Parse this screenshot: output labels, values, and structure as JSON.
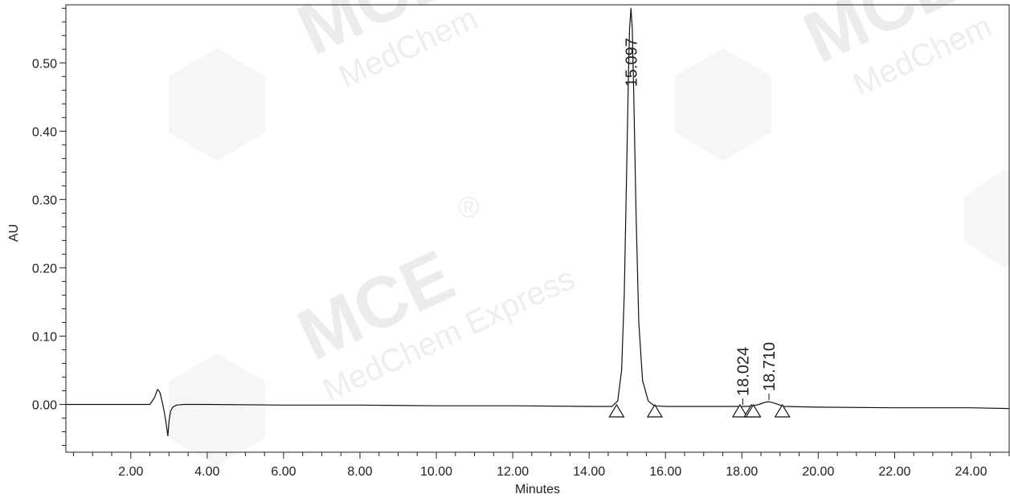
{
  "colors": {
    "trace": "#111111",
    "axis": "#222222",
    "watermark": "#ececec"
  },
  "watermark": {
    "brand": "MCE",
    "line1": "MedChem",
    "line2": "MedChem Express",
    "registered": "®"
  },
  "chart_data": {
    "type": "line",
    "xlabel": "Minutes",
    "ylabel": "AU",
    "xlim": [
      0.3,
      25.0
    ],
    "ylim": [
      -0.07,
      0.585
    ],
    "grid": false,
    "legend": "none",
    "x_ticks": [
      2.0,
      4.0,
      6.0,
      8.0,
      10.0,
      12.0,
      14.0,
      16.0,
      18.0,
      20.0,
      22.0,
      24.0
    ],
    "x_tick_labels": [
      "2.00",
      "4.00",
      "6.00",
      "8.00",
      "10.00",
      "12.00",
      "14.00",
      "16.00",
      "18.00",
      "20.00",
      "22.00",
      "24.00"
    ],
    "y_ticks": [
      0.0,
      0.1,
      0.2,
      0.3,
      0.4,
      0.5
    ],
    "y_tick_labels": [
      "0.00",
      "0.10",
      "0.20",
      "0.30",
      "0.40",
      "0.50"
    ],
    "series": [
      {
        "x": [
          0.3,
          2.5,
          2.62,
          2.7,
          2.76,
          2.82,
          2.88,
          2.93,
          2.97,
          3.0,
          3.04,
          3.1,
          3.2,
          3.4,
          4.0,
          6.0,
          8.0,
          10.0,
          12.0,
          14.0,
          14.6,
          14.75,
          14.85,
          14.92,
          14.98,
          15.03,
          15.06,
          15.097,
          15.13,
          15.17,
          15.23,
          15.3,
          15.4,
          15.55,
          15.7,
          16.0,
          17.0,
          17.9,
          18.024,
          18.15,
          18.3,
          18.45,
          18.6,
          18.71,
          18.85,
          19.0,
          19.1,
          20.0,
          22.0,
          24.0,
          25.0
        ],
        "y": [
          0.0,
          0.0,
          0.01,
          0.022,
          0.018,
          0.004,
          -0.012,
          -0.03,
          -0.046,
          -0.025,
          -0.01,
          -0.004,
          -0.001,
          0.0,
          0.0,
          -0.001,
          -0.001,
          -0.002,
          -0.002,
          -0.003,
          -0.003,
          0.005,
          0.05,
          0.16,
          0.33,
          0.48,
          0.55,
          0.58,
          0.55,
          0.45,
          0.28,
          0.12,
          0.035,
          0.005,
          -0.002,
          -0.003,
          -0.003,
          -0.003,
          -0.003,
          -0.003,
          -0.002,
          0.0,
          0.003,
          0.004,
          0.002,
          -0.001,
          -0.003,
          -0.004,
          -0.005,
          -0.005,
          -0.006
        ]
      }
    ],
    "peaks": [
      {
        "rt": 15.097,
        "label": "15.097",
        "apex_au": 0.58
      },
      {
        "rt": 18.024,
        "label": "18.024",
        "apex_au": -0.003
      },
      {
        "rt": 18.71,
        "label": "18.710",
        "apex_au": 0.004
      }
    ],
    "integration_markers": [
      14.72,
      15.72,
      17.95,
      18.25,
      18.3,
      19.06
    ]
  }
}
